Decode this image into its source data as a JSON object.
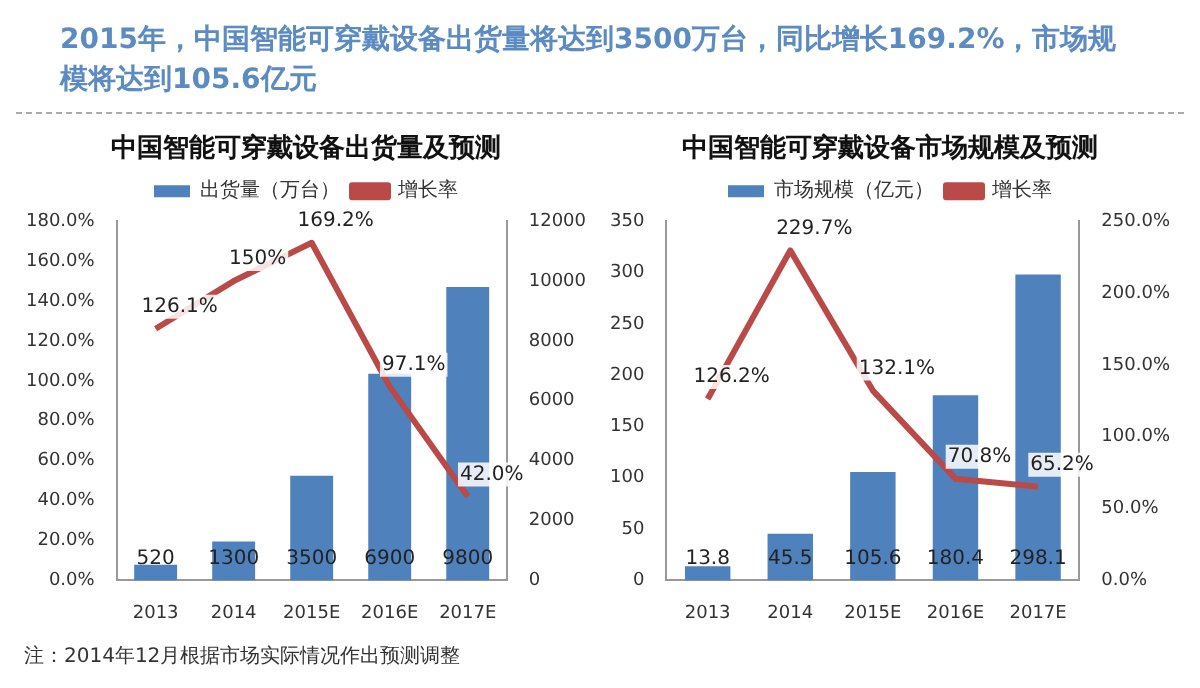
{
  "chart_data": [
    {
      "type": "other",
      "title": "2015年，中国智能可穿戴设备出货量将达到3500万台，同比增长169.2%，市场规模将达到105.6亿元",
      "annotations": [
        "注：2014年12月根据市场实际情况作出预测调整"
      ]
    },
    {
      "type": "bar",
      "title": "中国智能可穿戴设备出货量及预测",
      "categories": [
        "2013",
        "2014",
        "2015E",
        "2016E",
        "2017E"
      ],
      "series": [
        {
          "name": "出货量（万台）",
          "type": "bar",
          "axis": "y2",
          "color": "#4f81bd",
          "values": [
            520,
            1300,
            3500,
            6900,
            9800
          ],
          "value_labels": [
            "520",
            "1300",
            "3500",
            "6900",
            "9800"
          ]
        },
        {
          "name": "增长率",
          "type": "line",
          "axis": "y",
          "color": "#b94a48",
          "values": [
            126.1,
            150,
            169.2,
            97.1,
            42.0
          ],
          "value_labels": [
            "126.1%",
            "150%",
            "169.2%",
            "97.1%",
            "42.0%"
          ]
        }
      ],
      "ylim": [
        0,
        180
      ],
      "yticks": [
        {
          "value": 0,
          "label": "0.0%"
        },
        {
          "value": 20,
          "label": "20.0%"
        },
        {
          "value": 40,
          "label": "40.0%"
        },
        {
          "value": 60,
          "label": "60.0%"
        },
        {
          "value": 80,
          "label": "80.0%"
        },
        {
          "value": 100,
          "label": "100.0%"
        },
        {
          "value": 120,
          "label": "120.0%"
        },
        {
          "value": 140,
          "label": "140.0%"
        },
        {
          "value": 160,
          "label": "160.0%"
        },
        {
          "value": 180,
          "label": "180.0%"
        }
      ],
      "y2lim": [
        0,
        12000
      ],
      "y2ticks": [
        0,
        2000,
        4000,
        6000,
        8000,
        10000,
        12000
      ],
      "legend": "top",
      "grid": false,
      "marker": "none"
    },
    {
      "type": "bar",
      "title": "中国智能可穿戴设备市场规模及预测",
      "categories": [
        "2013",
        "2014",
        "2015E",
        "2016E",
        "2017E"
      ],
      "series": [
        {
          "name": "市场规模（亿元）",
          "type": "bar",
          "axis": "y",
          "color": "#4f81bd",
          "values": [
            13.8,
            45.5,
            105.6,
            180.4,
            298.1
          ],
          "value_labels": [
            "13.8",
            "45.5",
            "105.6",
            "180.4",
            "298.1"
          ]
        },
        {
          "name": "增长率",
          "type": "line",
          "axis": "y2",
          "color": "#b94a48",
          "values": [
            126.2,
            229.7,
            132.1,
            70.8,
            65.2
          ],
          "value_labels": [
            "126.2%",
            "229.7%",
            "132.1%",
            "70.8%",
            "65.2%"
          ]
        }
      ],
      "ylim": [
        0,
        350
      ],
      "yticks": [
        0,
        50,
        100,
        150,
        200,
        250,
        300,
        350
      ],
      "y2lim": [
        0,
        250
      ],
      "y2ticks": [
        {
          "value": 0,
          "label": "0.0%"
        },
        {
          "value": 50,
          "label": "50.0%"
        },
        {
          "value": 100,
          "label": "100.0%"
        },
        {
          "value": 150,
          "label": "150.0%"
        },
        {
          "value": 200,
          "label": "200.0%"
        },
        {
          "value": 250,
          "label": "250.0%"
        }
      ],
      "legend": "top",
      "grid": false,
      "marker": "none"
    }
  ]
}
